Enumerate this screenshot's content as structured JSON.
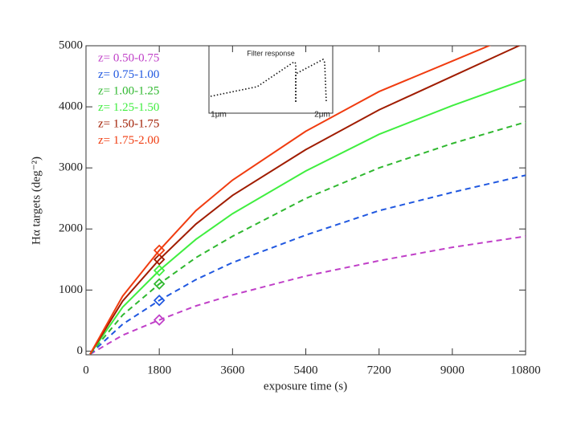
{
  "chart_data": {
    "type": "line",
    "xlabel": "exposure time (s)",
    "ylabel": "Hα targets (deg⁻²)",
    "x": [
      100,
      900,
      1800,
      2700,
      3600,
      5400,
      7200,
      9000,
      10800
    ],
    "xlim": [
      0,
      10800
    ],
    "xticks": [
      0,
      1800,
      3600,
      5400,
      7200,
      9000,
      10800
    ],
    "ylim": [
      -60,
      5000
    ],
    "yticks": [
      0,
      1000,
      2000,
      3000,
      4000,
      5000
    ],
    "series": [
      {
        "name": "z= 0.50-0.75",
        "color": "#c040c8",
        "dashed": true,
        "values": [
          -50,
          260,
          510,
          740,
          920,
          1230,
          1480,
          1700,
          1880
        ]
      },
      {
        "name": "z= 0.75-1.00",
        "color": "#2058e0",
        "dashed": true,
        "values": [
          -50,
          440,
          830,
          1170,
          1450,
          1900,
          2300,
          2600,
          2880
        ]
      },
      {
        "name": "z= 1.00-1.25",
        "color": "#30b830",
        "dashed": true,
        "values": [
          -50,
          590,
          1100,
          1530,
          1880,
          2500,
          3000,
          3400,
          3750
        ]
      },
      {
        "name": "z= 1.25-1.50",
        "color": "#40ee40",
        "dashed": false,
        "values": [
          -50,
          720,
          1320,
          1830,
          2250,
          2950,
          3550,
          4020,
          4450
        ]
      },
      {
        "name": "z= 1.50-1.75",
        "color": "#a01c00",
        "dashed": false,
        "values": [
          -50,
          820,
          1500,
          2080,
          2550,
          3300,
          3950,
          4500,
          5050
        ]
      },
      {
        "name": "z= 1.75-2.00",
        "color": "#f03c10",
        "dashed": false,
        "values": [
          -50,
          900,
          1650,
          2300,
          2800,
          3600,
          4250,
          4750,
          5250
        ]
      }
    ],
    "inset": {
      "title": "Filter response",
      "xlabels": [
        "1μm",
        "2μm"
      ]
    }
  }
}
